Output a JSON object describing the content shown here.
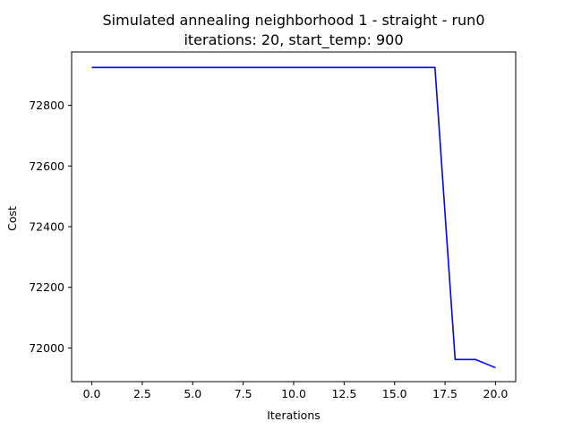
{
  "chart_data": {
    "type": "line",
    "title_line1": "Simulated annealing neighborhood 1 - straight - run0",
    "title_line2": "iterations: 20, start_temp: 900",
    "xlabel": "Iterations",
    "ylabel": "Cost",
    "x_ticks": [
      0,
      2.5,
      5,
      7.5,
      10,
      12.5,
      15,
      17.5,
      20
    ],
    "x_tick_labels": [
      "0.0",
      "2.5",
      "5.0",
      "7.5",
      "10.0",
      "12.5",
      "15.0",
      "17.5",
      "20.0"
    ],
    "y_ticks": [
      72000,
      72200,
      72400,
      72600,
      72800
    ],
    "y_tick_labels": [
      "72000",
      "72200",
      "72400",
      "72600",
      "72800"
    ],
    "xlim": [
      -1,
      21
    ],
    "ylim": [
      71889,
      72976
    ],
    "grid": false,
    "line_color": "#0000ff",
    "series": [
      {
        "x": [
          0,
          1,
          2,
          3,
          4,
          5,
          6,
          7,
          8,
          9,
          10,
          11,
          12,
          13,
          14,
          15,
          16,
          17,
          18,
          19,
          20
        ],
        "values": [
          72925,
          72925,
          72925,
          72925,
          72925,
          72925,
          72925,
          72925,
          72925,
          72925,
          72925,
          72925,
          72925,
          72925,
          72925,
          72925,
          72925,
          72925,
          71962,
          71962,
          71935
        ]
      }
    ]
  }
}
